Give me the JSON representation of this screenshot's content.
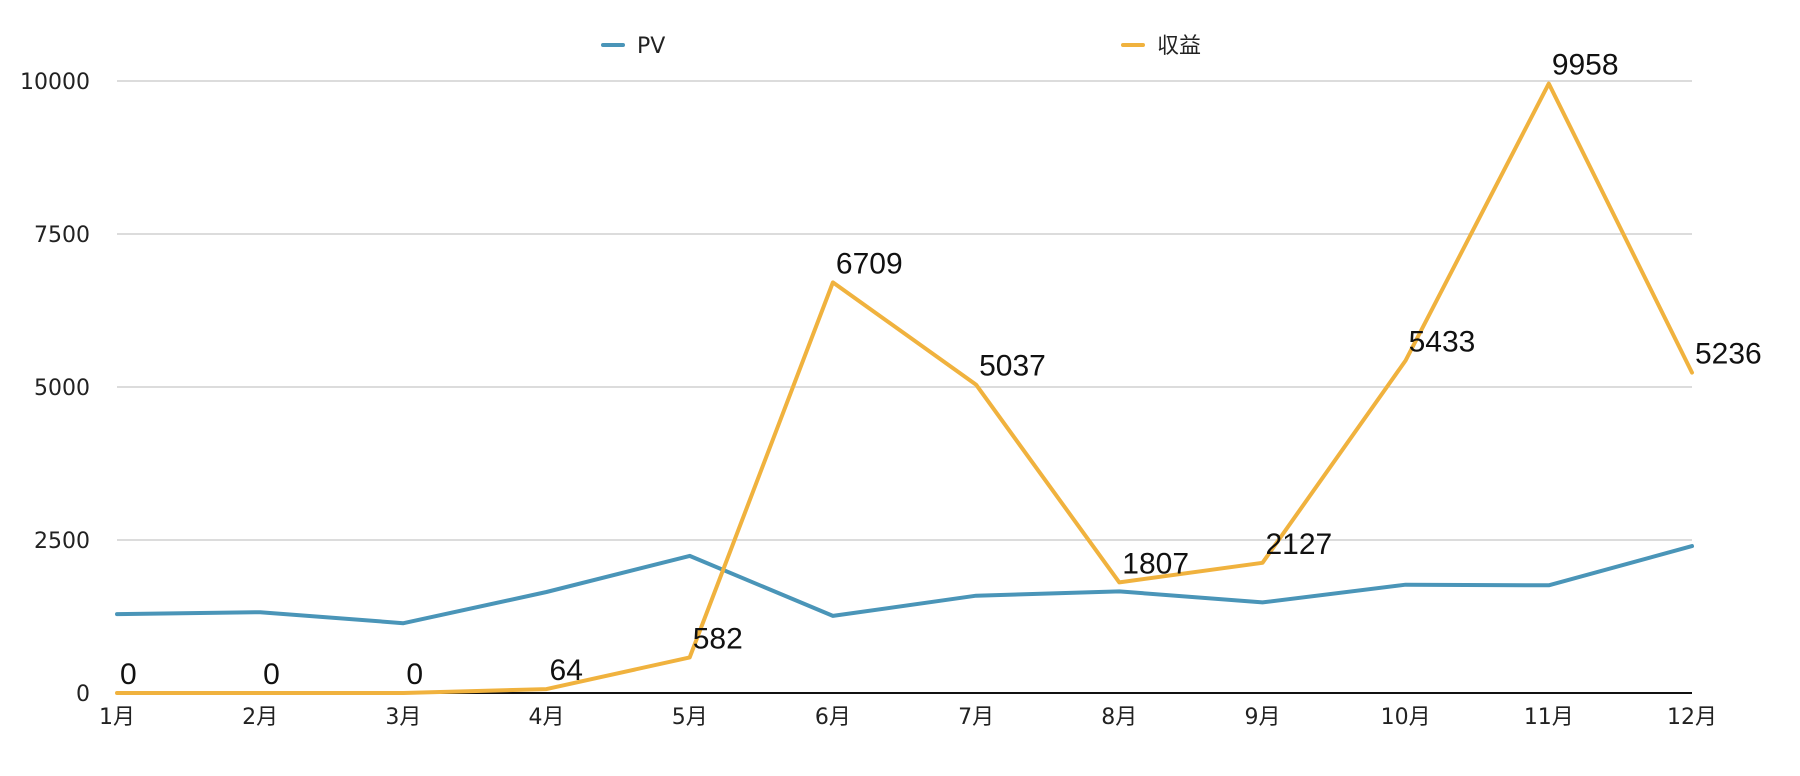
{
  "chart_data": {
    "type": "line",
    "categories": [
      "1月",
      "2月",
      "3月",
      "4月",
      "5月",
      "6月",
      "7月",
      "8月",
      "9月",
      "10月",
      "11月",
      "12月"
    ],
    "series": [
      {
        "name": "PV",
        "color": "#4a95b8",
        "values": [
          1290,
          1320,
          1140,
          1650,
          2240,
          1260,
          1590,
          1660,
          1480,
          1770,
          1760,
          2400
        ],
        "show_labels": false
      },
      {
        "name": "収益",
        "color": "#f0b23e",
        "values": [
          0,
          0,
          0,
          64,
          582,
          6709,
          5037,
          1807,
          2127,
          5433,
          9958,
          5236
        ],
        "show_labels": true
      }
    ],
    "y_ticks": [
      0,
      2500,
      5000,
      7500,
      10000
    ],
    "ylim": [
      0,
      10000
    ],
    "grid": true,
    "legend_position": "top"
  }
}
